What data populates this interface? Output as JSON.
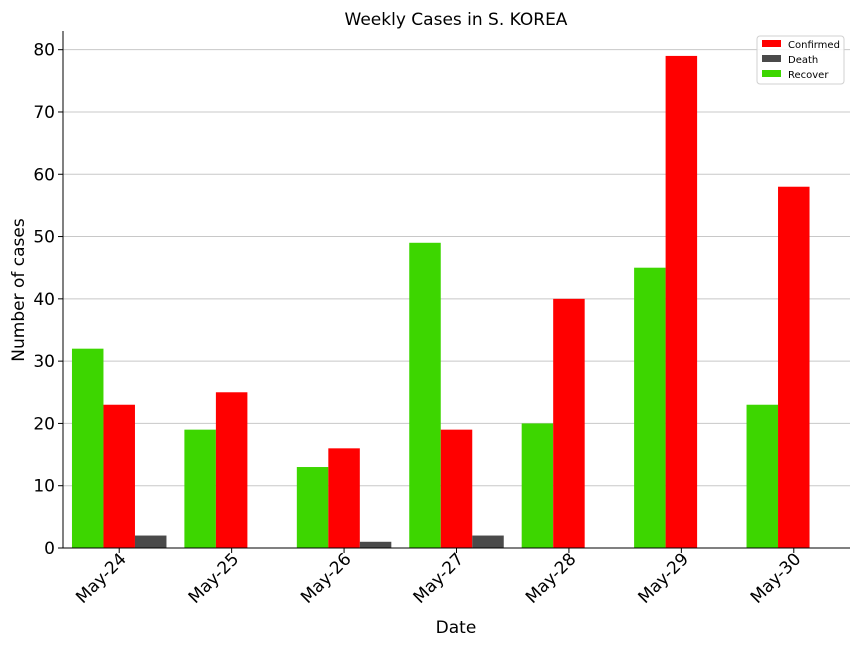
{
  "chart_data": {
    "type": "bar",
    "title": "Weekly Cases in S. KOREA",
    "xlabel": "Date",
    "ylabel": "Number of cases",
    "categories": [
      "May-24",
      "May-25",
      "May-26",
      "May-27",
      "May-28",
      "May-29",
      "May-30"
    ],
    "series": [
      {
        "name": "Recover",
        "color": "#3dd600",
        "values": [
          32,
          19,
          13,
          49,
          20,
          45,
          23
        ]
      },
      {
        "name": "Confirmed",
        "color": "#ff0000",
        "values": [
          23,
          25,
          16,
          19,
          40,
          79,
          58
        ]
      },
      {
        "name": "Death",
        "color": "#4a4a4a",
        "values": [
          2,
          0,
          1,
          2,
          0,
          0,
          0
        ]
      }
    ],
    "legend_order": [
      "Confirmed",
      "Death",
      "Recover"
    ],
    "ylim": [
      0,
      83
    ],
    "yticks": [
      0,
      10,
      20,
      30,
      40,
      50,
      60,
      70,
      80
    ],
    "grid": "horizontal",
    "legend_position": "top-right"
  }
}
